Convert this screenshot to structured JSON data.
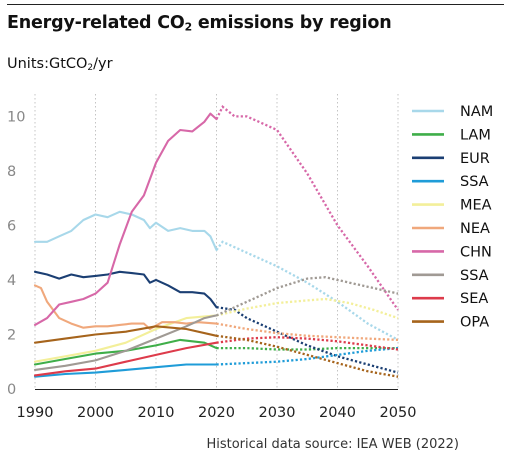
{
  "title": {
    "before": "Energy-related CO",
    "sub": "2",
    "after": " emissions by region"
  },
  "units": {
    "before": "Units:GtCO",
    "sub": "2",
    "after": "/yr"
  },
  "source": "Historical data source: IEA WEB (2022)",
  "chart_data": {
    "type": "line",
    "xlim": [
      1990,
      2050
    ],
    "ylim": [
      0,
      10.6
    ],
    "x_ticks": [
      1990,
      2000,
      2010,
      2020,
      2030,
      2040,
      2050
    ],
    "y_ticks": [
      0,
      2,
      4,
      6,
      8,
      10
    ],
    "x_tick_labels": [
      "1990",
      "2000",
      "2010",
      "2020",
      "2030",
      "2040",
      "2050"
    ],
    "y_tick_labels": [
      "0",
      "2",
      "4",
      "6",
      "8",
      "10"
    ],
    "grid": "vertical dotted",
    "legend_position": "right",
    "historical_end_year": 2020,
    "projection_style": "dotted",
    "series": [
      {
        "name": "NAM",
        "color": "#a8d8ea",
        "historical": [
          [
            1990,
            5.4
          ],
          [
            1992,
            5.4
          ],
          [
            1994,
            5.6
          ],
          [
            1996,
            5.8
          ],
          [
            1998,
            6.2
          ],
          [
            2000,
            6.4
          ],
          [
            2002,
            6.3
          ],
          [
            2004,
            6.5
          ],
          [
            2006,
            6.4
          ],
          [
            2008,
            6.2
          ],
          [
            2009,
            5.9
          ],
          [
            2010,
            6.1
          ],
          [
            2012,
            5.8
          ],
          [
            2014,
            5.9
          ],
          [
            2016,
            5.8
          ],
          [
            2018,
            5.8
          ],
          [
            2019,
            5.6
          ],
          [
            2020,
            5.1
          ]
        ],
        "projection": [
          [
            2020,
            5.1
          ],
          [
            2021,
            5.4
          ],
          [
            2025,
            5.0
          ],
          [
            2030,
            4.5
          ],
          [
            2035,
            3.9
          ],
          [
            2040,
            3.2
          ],
          [
            2045,
            2.4
          ],
          [
            2050,
            1.8
          ]
        ]
      },
      {
        "name": "LAM",
        "color": "#3fae49",
        "historical": [
          [
            1990,
            0.9
          ],
          [
            1995,
            1.1
          ],
          [
            2000,
            1.3
          ],
          [
            2005,
            1.4
          ],
          [
            2010,
            1.6
          ],
          [
            2014,
            1.8
          ],
          [
            2016,
            1.75
          ],
          [
            2018,
            1.7
          ],
          [
            2020,
            1.5
          ]
        ],
        "projection": [
          [
            2020,
            1.5
          ],
          [
            2025,
            1.5
          ],
          [
            2030,
            1.45
          ],
          [
            2035,
            1.45
          ],
          [
            2040,
            1.5
          ],
          [
            2045,
            1.5
          ],
          [
            2050,
            1.5
          ]
        ]
      },
      {
        "name": "EUR",
        "color": "#1b3f73",
        "historical": [
          [
            1990,
            4.3
          ],
          [
            1992,
            4.2
          ],
          [
            1994,
            4.05
          ],
          [
            1996,
            4.2
          ],
          [
            1998,
            4.1
          ],
          [
            2000,
            4.15
          ],
          [
            2002,
            4.2
          ],
          [
            2004,
            4.3
          ],
          [
            2006,
            4.25
          ],
          [
            2008,
            4.2
          ],
          [
            2009,
            3.9
          ],
          [
            2010,
            4.0
          ],
          [
            2012,
            3.8
          ],
          [
            2014,
            3.55
          ],
          [
            2016,
            3.55
          ],
          [
            2018,
            3.5
          ],
          [
            2019,
            3.3
          ],
          [
            2020,
            3.0
          ]
        ],
        "projection": [
          [
            2020,
            3.0
          ],
          [
            2023,
            2.9
          ],
          [
            2025,
            2.6
          ],
          [
            2030,
            2.1
          ],
          [
            2035,
            1.6
          ],
          [
            2040,
            1.2
          ],
          [
            2045,
            0.9
          ],
          [
            2050,
            0.6
          ]
        ]
      },
      {
        "name": "SSA",
        "color": "#1f9cd8",
        "historical": [
          [
            1990,
            0.45
          ],
          [
            1995,
            0.55
          ],
          [
            2000,
            0.6
          ],
          [
            2005,
            0.7
          ],
          [
            2010,
            0.8
          ],
          [
            2015,
            0.9
          ],
          [
            2020,
            0.9
          ]
        ],
        "projection": [
          [
            2020,
            0.9
          ],
          [
            2025,
            0.95
          ],
          [
            2030,
            1.0
          ],
          [
            2035,
            1.1
          ],
          [
            2040,
            1.25
          ],
          [
            2045,
            1.4
          ],
          [
            2050,
            1.5
          ]
        ]
      },
      {
        "name": "MEA",
        "color": "#f3ef9a",
        "historical": [
          [
            1990,
            1.0
          ],
          [
            1995,
            1.2
          ],
          [
            2000,
            1.4
          ],
          [
            2005,
            1.7
          ],
          [
            2010,
            2.2
          ],
          [
            2015,
            2.6
          ],
          [
            2020,
            2.7
          ]
        ],
        "projection": [
          [
            2020,
            2.7
          ],
          [
            2025,
            2.95
          ],
          [
            2030,
            3.15
          ],
          [
            2035,
            3.25
          ],
          [
            2038,
            3.3
          ],
          [
            2042,
            3.15
          ],
          [
            2046,
            2.9
          ],
          [
            2050,
            2.6
          ]
        ]
      },
      {
        "name": "NEA",
        "color": "#f0a87c",
        "historical": [
          [
            1990,
            3.8
          ],
          [
            1991,
            3.7
          ],
          [
            1992,
            3.2
          ],
          [
            1994,
            2.6
          ],
          [
            1996,
            2.4
          ],
          [
            1998,
            2.25
          ],
          [
            2000,
            2.3
          ],
          [
            2002,
            2.3
          ],
          [
            2004,
            2.35
          ],
          [
            2006,
            2.4
          ],
          [
            2008,
            2.4
          ],
          [
            2009,
            2.2
          ],
          [
            2011,
            2.45
          ],
          [
            2013,
            2.45
          ],
          [
            2015,
            2.4
          ],
          [
            2017,
            2.45
          ],
          [
            2020,
            2.4
          ]
        ],
        "projection": [
          [
            2020,
            2.4
          ],
          [
            2025,
            2.2
          ],
          [
            2030,
            2.05
          ],
          [
            2035,
            1.95
          ],
          [
            2040,
            1.9
          ],
          [
            2045,
            1.85
          ],
          [
            2050,
            1.8
          ]
        ]
      },
      {
        "name": "CHN",
        "color": "#d768a8",
        "historical": [
          [
            1990,
            2.35
          ],
          [
            1992,
            2.6
          ],
          [
            1994,
            3.1
          ],
          [
            1996,
            3.2
          ],
          [
            1998,
            3.3
          ],
          [
            2000,
            3.5
          ],
          [
            2002,
            3.9
          ],
          [
            2004,
            5.3
          ],
          [
            2006,
            6.5
          ],
          [
            2008,
            7.1
          ],
          [
            2010,
            8.3
          ],
          [
            2012,
            9.1
          ],
          [
            2014,
            9.5
          ],
          [
            2016,
            9.45
          ],
          [
            2018,
            9.8
          ],
          [
            2019,
            10.1
          ],
          [
            2020,
            9.9
          ]
        ],
        "projection": [
          [
            2020,
            9.9
          ],
          [
            2021,
            10.35
          ],
          [
            2023,
            10.0
          ],
          [
            2025,
            10.0
          ],
          [
            2028,
            9.7
          ],
          [
            2030,
            9.5
          ],
          [
            2035,
            7.9
          ],
          [
            2040,
            6.0
          ],
          [
            2045,
            4.5
          ],
          [
            2050,
            2.9
          ]
        ]
      },
      {
        "name": "SSA",
        "color": "#a09a94",
        "historical": [
          [
            1990,
            0.7
          ],
          [
            1995,
            0.85
          ],
          [
            2000,
            1.05
          ],
          [
            2005,
            1.4
          ],
          [
            2010,
            1.85
          ],
          [
            2015,
            2.3
          ],
          [
            2018,
            2.6
          ],
          [
            2020,
            2.7
          ]
        ],
        "projection": [
          [
            2020,
            2.7
          ],
          [
            2025,
            3.2
          ],
          [
            2030,
            3.7
          ],
          [
            2035,
            4.05
          ],
          [
            2038,
            4.1
          ],
          [
            2042,
            3.9
          ],
          [
            2046,
            3.7
          ],
          [
            2050,
            3.5
          ]
        ]
      },
      {
        "name": "SEA",
        "color": "#dd3b4b",
        "historical": [
          [
            1990,
            0.5
          ],
          [
            1995,
            0.65
          ],
          [
            2000,
            0.75
          ],
          [
            2005,
            1.0
          ],
          [
            2010,
            1.25
          ],
          [
            2015,
            1.5
          ],
          [
            2020,
            1.7
          ]
        ],
        "projection": [
          [
            2020,
            1.7
          ],
          [
            2025,
            1.85
          ],
          [
            2030,
            1.9
          ],
          [
            2035,
            1.85
          ],
          [
            2040,
            1.75
          ],
          [
            2045,
            1.6
          ],
          [
            2050,
            1.45
          ]
        ]
      },
      {
        "name": "OPA",
        "color": "#a6641c",
        "historical": [
          [
            1990,
            1.7
          ],
          [
            1995,
            1.85
          ],
          [
            2000,
            2.0
          ],
          [
            2005,
            2.1
          ],
          [
            2010,
            2.3
          ],
          [
            2015,
            2.2
          ],
          [
            2020,
            1.95
          ]
        ],
        "projection": [
          [
            2020,
            1.95
          ],
          [
            2025,
            1.8
          ],
          [
            2030,
            1.55
          ],
          [
            2035,
            1.25
          ],
          [
            2040,
            0.95
          ],
          [
            2045,
            0.65
          ],
          [
            2050,
            0.45
          ]
        ]
      }
    ]
  }
}
